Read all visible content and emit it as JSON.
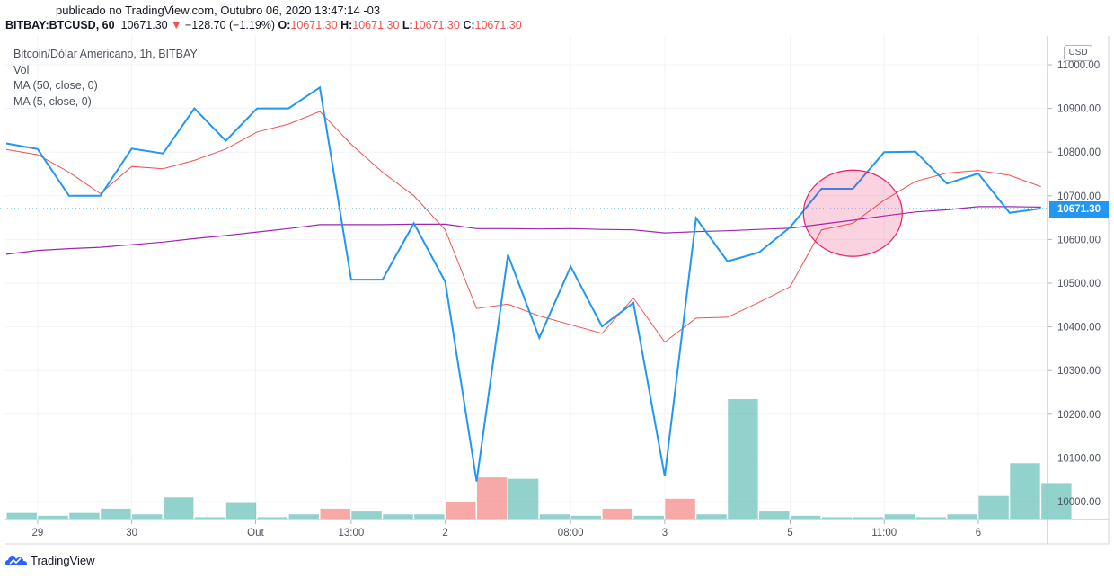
{
  "header": {
    "published": "publicado no TradingView.com, Outubro 06, 2020 13:47:14 -03",
    "symbol": "BITBAY:BTCUSD, 60",
    "last": "10671.30",
    "change_arrow": "▼",
    "change": "−128.70 (−1.19%)",
    "o_label": "O:",
    "o_value": "10671.30",
    "h_label": "H:",
    "h_value": "10671.30",
    "l_label": "L:",
    "l_value": "10671.30",
    "c_label": "C:",
    "c_value": "10671.30"
  },
  "legend": {
    "title": "Bitcoin/Dólar Americano, 1h, BITBAY",
    "vol": "Vol",
    "ma50": "MA (50, close, 0)",
    "ma5": "MA (5, close, 0)"
  },
  "currency_button": "USD",
  "last_price_tag": "10671.30",
  "footer": {
    "brand": "TradingView"
  },
  "colors": {
    "price_line": "#2196f3",
    "ma5_line": "#ef5350",
    "ma50_line": "#9c27b0",
    "vol_up": "#26a69a",
    "vol_down": "#ef5350",
    "highlight_circle": "#e91e63"
  },
  "chart_data": {
    "type": "line",
    "x_tick_labels": [
      "29",
      "30",
      "Out",
      "13:00",
      "2",
      "08:00",
      "3",
      "5",
      "11:00",
      "6"
    ],
    "y_tick_labels": [
      "10000.00",
      "10100.00",
      "10200.00",
      "10300.00",
      "10400.00",
      "10500.00",
      "10600.00",
      "10700.00",
      "10800.00",
      "10900.00",
      "11000.00"
    ],
    "ylim": [
      9960,
      11020
    ],
    "series": [
      {
        "name": "BITBAY:BTCUSD",
        "values": [
          10820,
          10807,
          10700,
          10700,
          10808,
          10797,
          10900,
          10826,
          10900,
          10900,
          10948,
          10508,
          10508,
          10637,
          10503,
          10046,
          10565,
          10375,
          10538,
          10401,
          10455,
          10058,
          10649,
          10550,
          10570,
          10628,
          10716,
          10716,
          10800,
          10801,
          10728,
          10751,
          10661,
          10671
        ]
      },
      {
        "name": "MA (5, close, 0)",
        "values": [
          10806,
          10794,
          10754,
          10705,
          10767,
          10762,
          10781,
          10807,
          10846,
          10864,
          10893,
          10818,
          10754,
          10700,
          10622,
          10442,
          10452,
          10425,
          10405,
          10385,
          10466,
          10365,
          10420,
          10422,
          10456,
          10492,
          10622,
          10637,
          10690,
          10733,
          10752,
          10758,
          10747,
          10721
        ]
      },
      {
        "name": "MA (50, close, 0)",
        "values": [
          10566,
          10575,
          10579,
          10582,
          10588,
          10594,
          10602,
          10609,
          10617,
          10625,
          10634,
          10634,
          10634,
          10635,
          10635,
          10625,
          10625,
          10624,
          10625,
          10623,
          10622,
          10615,
          10618,
          10620,
          10623,
          10626,
          10635,
          10644,
          10654,
          10663,
          10668,
          10675,
          10675,
          10674
        ]
      }
    ],
    "volume": {
      "name": "Vol",
      "values": [
        0.2,
        0.1,
        0.2,
        0.35,
        0.15,
        0.75,
        0.05,
        0.55,
        0.05,
        0.15,
        0.35,
        0.25,
        0.15,
        0.15,
        0.6,
        1.45,
        1.4,
        0.15,
        0.1,
        0.35,
        0.1,
        0.7,
        0.15,
        4.2,
        0.25,
        0.1,
        0.05,
        0.05,
        0.15,
        0.05,
        0.15,
        0.8,
        1.95,
        1.25
      ],
      "direction": [
        "up",
        "up",
        "up",
        "up",
        "up",
        "up",
        "up",
        "up",
        "up",
        "up",
        "down",
        "up",
        "up",
        "up",
        "down",
        "down",
        "up",
        "up",
        "up",
        "down",
        "up",
        "down",
        "up",
        "up",
        "up",
        "up",
        "up",
        "up",
        "up",
        "up",
        "up",
        "up",
        "up",
        "up"
      ]
    },
    "last_price": 10671.3,
    "highlight_circle": {
      "center_bar": 27,
      "center_value": 10660
    }
  }
}
